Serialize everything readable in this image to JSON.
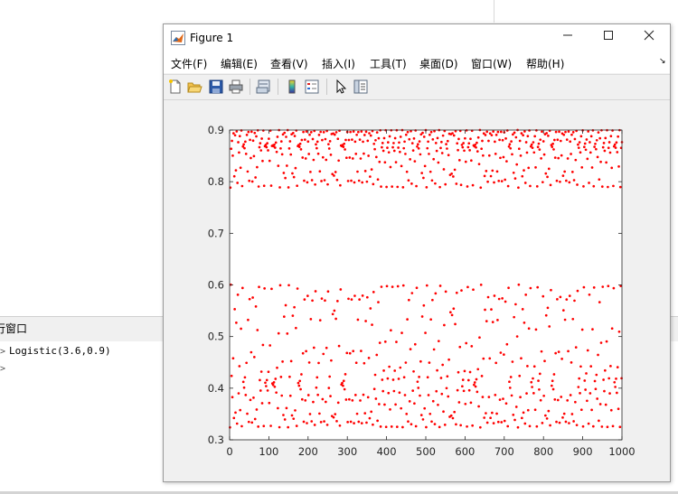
{
  "desktop": {
    "command_window_title": "行窗口",
    "command_history": [
      "Logistic(3.6,0.9)",
      ""
    ]
  },
  "figure": {
    "title": "Figure 1",
    "menu": [
      "文件(F)",
      "编辑(E)",
      "查看(V)",
      "插入(I)",
      "工具(T)",
      "桌面(D)",
      "窗口(W)",
      "帮助(H)"
    ],
    "toolbar_icons": [
      "new-figure-icon",
      "open-file-icon",
      "save-icon",
      "print-icon",
      "link-plot-icon",
      "colorbar-icon",
      "legend-icon",
      "edit-plot-arrow-icon",
      "property-inspector-icon"
    ]
  },
  "chart_data": {
    "type": "scatter",
    "title": "",
    "xlabel": "",
    "ylabel": "",
    "xlim": [
      0,
      1000
    ],
    "ylim": [
      0.3,
      0.9
    ],
    "xticks": [
      "0",
      "100",
      "200",
      "300",
      "400",
      "500",
      "600",
      "700",
      "800",
      "900",
      "1000"
    ],
    "yticks": [
      "0.3",
      "0.4",
      "0.5",
      "0.6",
      "0.7",
      "0.8",
      "0.9"
    ],
    "marker": "red dots",
    "color": "#ff0000",
    "series": [
      {
        "generator": "logistic map x(n+1) = r*x(n)*(1-x(n)), n = 1..1000",
        "r": 3.6,
        "x0": 0.9,
        "y_range": [
          0.32,
          0.9
        ]
      }
    ]
  }
}
